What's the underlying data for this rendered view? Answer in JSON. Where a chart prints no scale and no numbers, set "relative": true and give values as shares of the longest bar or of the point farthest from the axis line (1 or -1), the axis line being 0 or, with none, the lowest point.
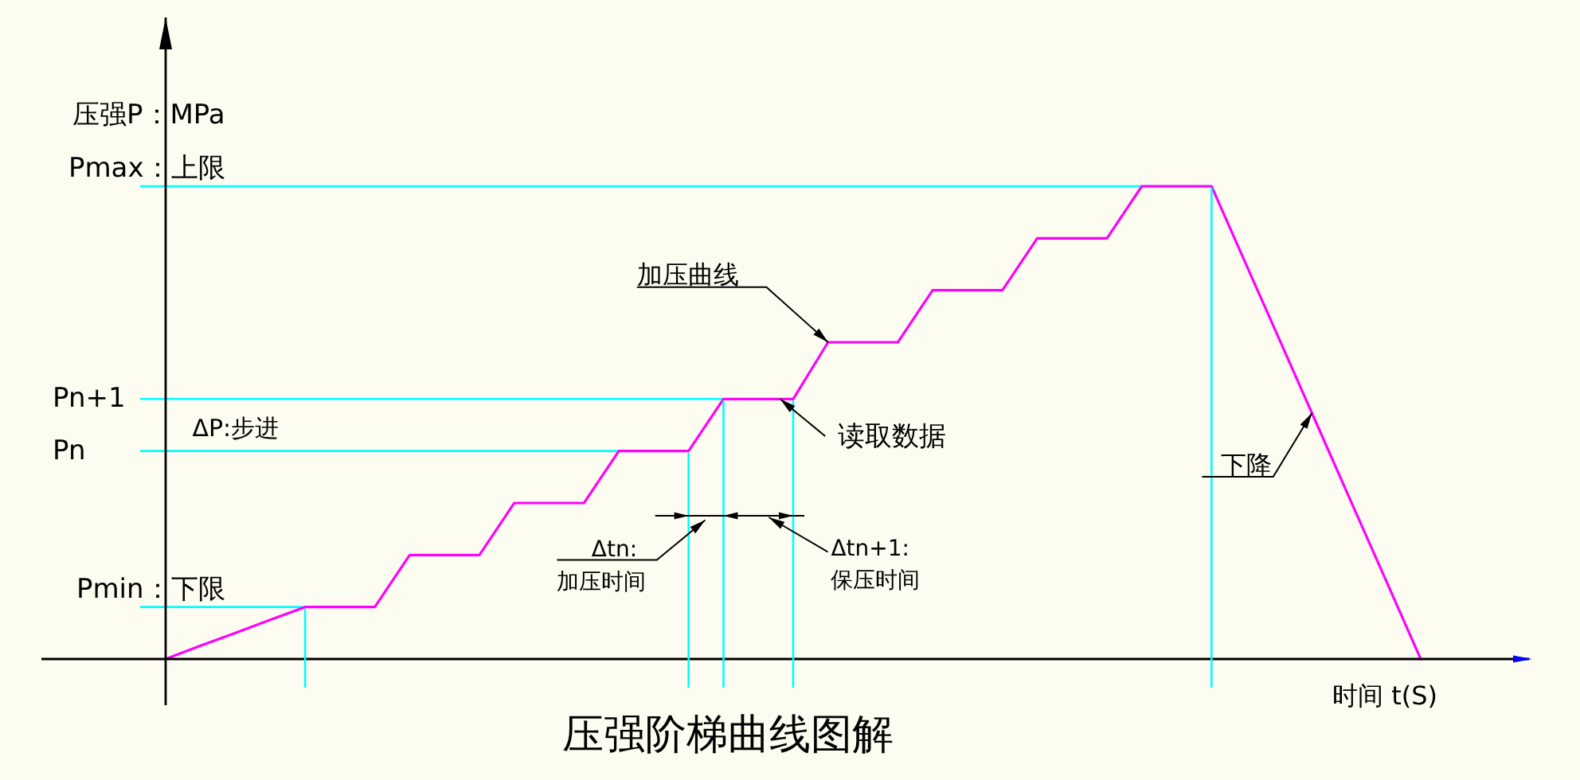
{
  "chart_data": {
    "type": "line",
    "title": "压强阶梯曲线图解",
    "xlabel": "时间 t(S)",
    "ylabel": "压强P：MPa",
    "relative": true,
    "categories": [
      null,
      null,
      null,
      null,
      null,
      null,
      null,
      null,
      null,
      null,
      null,
      null,
      null,
      null,
      null,
      null,
      null,
      null,
      null,
      null,
      null,
      null,
      null,
      null,
      null,
      null,
      null,
      null,
      null,
      null,
      null,
      null,
      null,
      null,
      null,
      null,
      null
    ],
    "values": [
      0,
      0.028,
      0.055,
      0.083,
      0.11,
      0.11,
      0.11,
      0.22,
      0.22,
      0.22,
      0.33,
      0.33,
      0.33,
      0.44,
      0.44,
      0.44,
      0.55,
      0.55,
      0.55,
      0.67,
      0.67,
      0.67,
      0.78,
      0.78,
      0.78,
      0.89,
      0.89,
      0.89,
      1,
      1,
      1,
      0.833,
      0.667,
      0.5,
      0.333,
      0.167,
      0
    ],
    "color": "#ff00ff",
    "ref_lines": [
      {
        "axis": "y",
        "value": 0.11,
        "label": "Pmin：下限",
        "color": "#00ffff"
      },
      {
        "axis": "y",
        "value": 0.44,
        "label": "Pn",
        "color": "#00ffff"
      },
      {
        "axis": "y",
        "value": 0.55,
        "label": "Pn+1",
        "color": "#00ffff"
      },
      {
        "axis": "y",
        "value": 1,
        "label": "Pmax：上限",
        "color": "#00ffff"
      }
    ],
    "annotations": [
      "加压曲线",
      "读取数据",
      "下降",
      "ΔP:步进",
      "Δtn:",
      "加压时间",
      "Δtn+1:",
      "保压时间"
    ]
  }
}
